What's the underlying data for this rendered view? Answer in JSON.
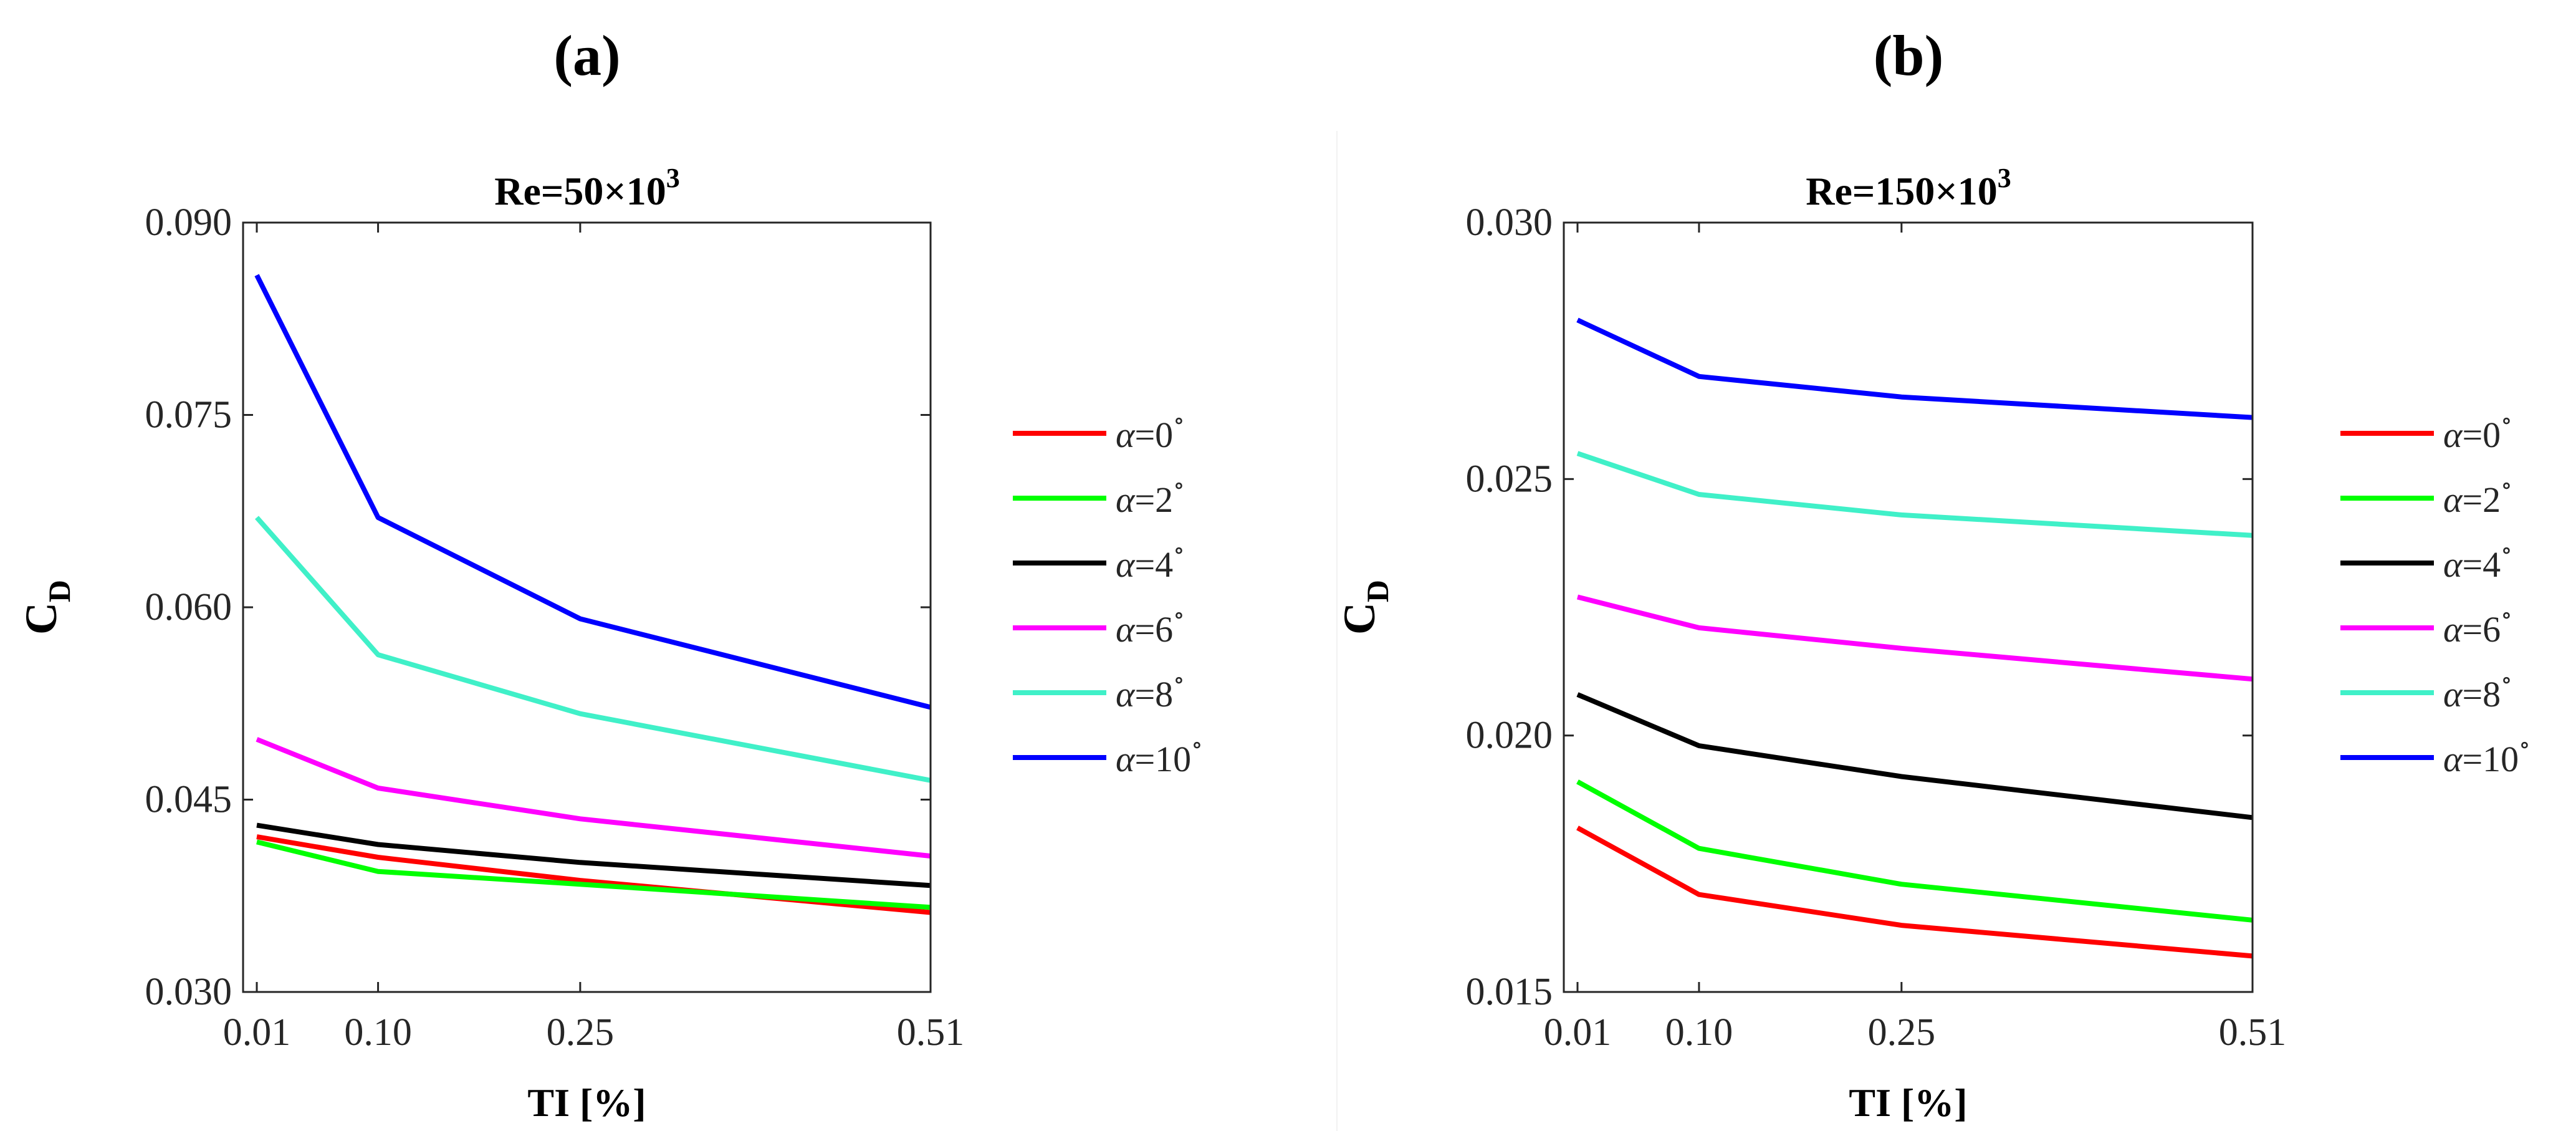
{
  "chart_data": [
    {
      "type": "line",
      "panel_label": "(a)",
      "title": "Re=50×10",
      "title_superscript": "3",
      "ylabel": "C",
      "ylabel_subscript": "D",
      "xlabel": "TI [%]",
      "x": [
        0.01,
        0.1,
        0.25,
        0.51
      ],
      "xticks": [
        "0.01",
        "0.10",
        "0.25",
        "0.51"
      ],
      "xlim": [
        0.0,
        0.51
      ],
      "ylim": [
        0.03,
        0.09
      ],
      "yticks": [
        "0.030",
        "0.045",
        "0.060",
        "0.075",
        "0.090"
      ],
      "legend_position": "right",
      "series": [
        {
          "name": "α=0",
          "sup": "∘",
          "color": "#ff0000",
          "values": [
            0.0421,
            0.0405,
            0.0387,
            0.0362
          ]
        },
        {
          "name": "α=2",
          "sup": "∘",
          "color": "#00ff00",
          "values": [
            0.0417,
            0.0394,
            0.0384,
            0.0366
          ]
        },
        {
          "name": "α=4",
          "sup": "∘",
          "color": "#000000",
          "values": [
            0.043,
            0.0415,
            0.0401,
            0.0383
          ]
        },
        {
          "name": "α=6",
          "sup": "∘",
          "color": "#ff00ff",
          "values": [
            0.0497,
            0.0459,
            0.0435,
            0.0406
          ]
        },
        {
          "name": "α=8",
          "sup": "∘",
          "color": "#40f0c8",
          "values": [
            0.067,
            0.0563,
            0.0517,
            0.0465
          ]
        },
        {
          "name": "α=10",
          "sup": "∘",
          "color": "#0000ff",
          "values": [
            0.0859,
            0.067,
            0.0591,
            0.0522
          ]
        }
      ]
    },
    {
      "type": "line",
      "panel_label": "(b)",
      "title": "Re=150×10",
      "title_superscript": "3",
      "ylabel": "C",
      "ylabel_subscript": "D",
      "xlabel": "TI [%]",
      "x": [
        0.01,
        0.1,
        0.25,
        0.51
      ],
      "xticks": [
        "0.01",
        "0.10",
        "0.25",
        "0.51"
      ],
      "xlim": [
        0.0,
        0.51
      ],
      "ylim": [
        0.015,
        0.03
      ],
      "yticks": [
        "0.015",
        "0.020",
        "0.025",
        "0.030"
      ],
      "legend_position": "right",
      "series": [
        {
          "name": "α=0",
          "sup": "∘",
          "color": "#ff0000",
          "values": [
            0.0182,
            0.0169,
            0.0163,
            0.0157
          ]
        },
        {
          "name": "α=2",
          "sup": "∘",
          "color": "#00ff00",
          "values": [
            0.0191,
            0.0178,
            0.0171,
            0.0164
          ]
        },
        {
          "name": "α=4",
          "sup": "∘",
          "color": "#000000",
          "values": [
            0.0208,
            0.0198,
            0.0192,
            0.0184
          ]
        },
        {
          "name": "α=6",
          "sup": "∘",
          "color": "#ff00ff",
          "values": [
            0.0227,
            0.0221,
            0.0217,
            0.0211
          ]
        },
        {
          "name": "α=8",
          "sup": "∘",
          "color": "#40f0c8",
          "values": [
            0.0255,
            0.0247,
            0.0243,
            0.0239
          ]
        },
        {
          "name": "α=10",
          "sup": "∘",
          "color": "#0000ff",
          "values": [
            0.0281,
            0.027,
            0.0266,
            0.0262
          ]
        }
      ]
    }
  ]
}
